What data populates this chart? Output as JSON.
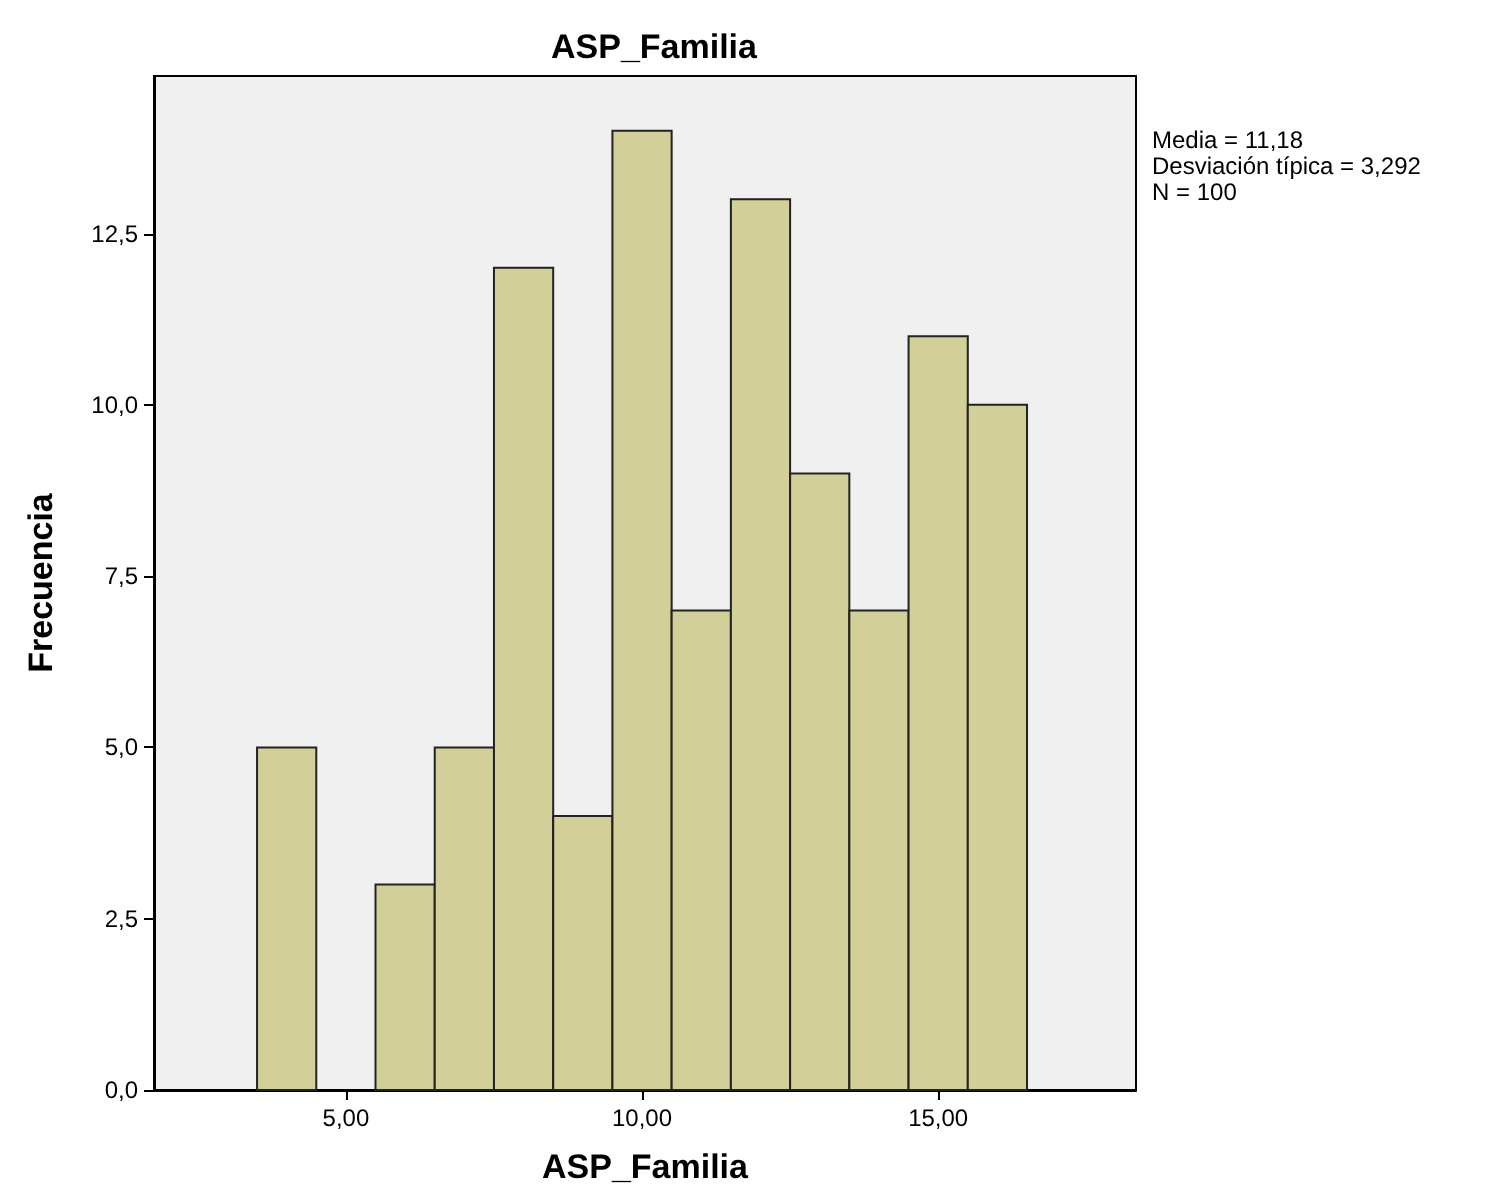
{
  "chart_data": {
    "type": "histogram",
    "title": "ASP_Familia",
    "xlabel": "ASP_Familia",
    "ylabel": "Frecuencia",
    "bins": [
      3.5,
      4.5,
      5.5,
      6.5,
      7.5,
      8.5,
      9.5,
      10.5,
      11.5,
      12.5,
      13.5,
      14.5,
      15.5,
      16.5
    ],
    "values": [
      5,
      0,
      3,
      5,
      12,
      4,
      14,
      7,
      13,
      9,
      7,
      11,
      10
    ],
    "color": "#d3cf98",
    "xlim": [
      1.76,
      18.34
    ],
    "xticks": [
      {
        "value": 5,
        "label": "5,00"
      },
      {
        "value": 10,
        "label": "10,00"
      },
      {
        "value": 15,
        "label": "15,00"
      }
    ],
    "ylim": [
      0,
      14.8
    ],
    "yticks": [
      {
        "value": 0,
        "label": "0,0"
      },
      {
        "value": 2.5,
        "label": "2,5"
      },
      {
        "value": 5,
        "label": "5,0"
      },
      {
        "value": 7.5,
        "label": "7,5"
      },
      {
        "value": 10,
        "label": "10,0"
      },
      {
        "value": 12.5,
        "label": "12,5"
      }
    ],
    "grid": false,
    "annotations": [
      "Media = 11,18",
      "Desviación típica = 3,292",
      "N = 100"
    ]
  }
}
